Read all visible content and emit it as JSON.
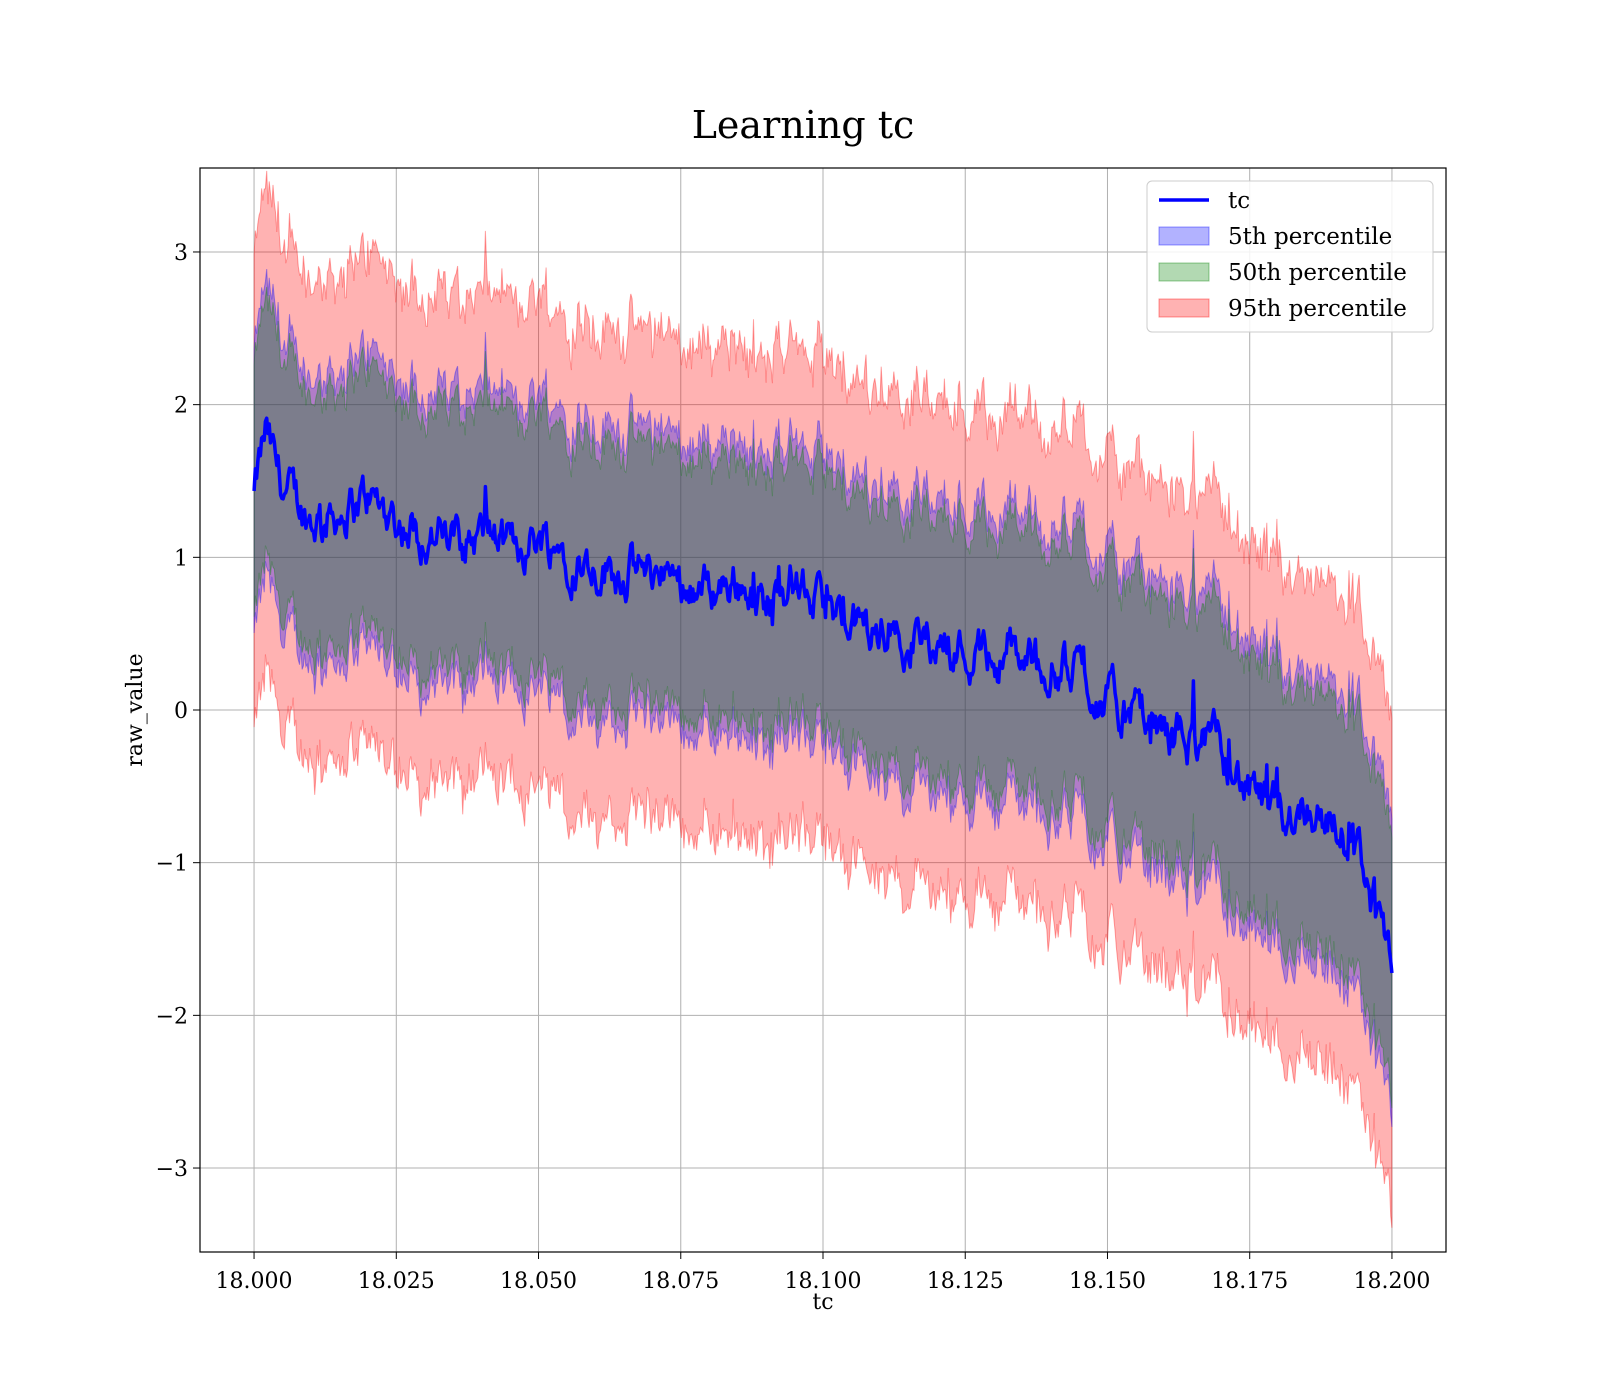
{
  "chart_data": {
    "type": "line",
    "title": "Learning tc",
    "xlabel": "tc",
    "ylabel": "raw_value",
    "xlim": [
      17.9905,
      18.2095
    ],
    "ylim": [
      -3.55,
      3.55
    ],
    "x_ticks": [
      18.0,
      18.025,
      18.05,
      18.075,
      18.1,
      18.125,
      18.15,
      18.175,
      18.2
    ],
    "x_tick_labels": [
      "18.000",
      "18.025",
      "18.050",
      "18.075",
      "18.100",
      "18.125",
      "18.150",
      "18.175",
      "18.200"
    ],
    "y_ticks": [
      -3,
      -2,
      -1,
      0,
      1,
      2,
      3
    ],
    "y_tick_labels": [
      "−3",
      "−2",
      "−1",
      "0",
      "1",
      "2",
      "3"
    ],
    "grid": true,
    "legend_position": "top-right",
    "colors": {
      "line": "#0000ff",
      "band_5th": "#0000ff",
      "band_50th": "#008000",
      "band_95th": "#ff0000"
    },
    "series": [
      {
        "name": "tc",
        "kind": "line",
        "x": [
          18.0,
          18.002,
          18.005,
          18.01,
          18.015,
          18.02,
          18.025,
          18.03,
          18.035,
          18.04,
          18.045,
          18.05,
          18.055,
          18.06,
          18.065,
          18.07,
          18.075,
          18.08,
          18.085,
          18.09,
          18.095,
          18.1,
          18.105,
          18.11,
          18.115,
          18.12,
          18.125,
          18.13,
          18.135,
          18.14,
          18.145,
          18.15,
          18.155,
          18.16,
          18.165,
          18.17,
          18.175,
          18.18,
          18.185,
          18.19,
          18.195,
          18.2
        ],
        "y": [
          1.4,
          1.8,
          1.45,
          1.25,
          1.3,
          1.4,
          1.25,
          1.15,
          1.1,
          1.15,
          1.05,
          1.15,
          1.05,
          0.95,
          0.92,
          0.9,
          0.85,
          0.8,
          0.85,
          0.7,
          0.85,
          0.65,
          0.55,
          0.5,
          0.5,
          0.45,
          0.4,
          0.35,
          0.35,
          0.3,
          0.25,
          0.05,
          -0.05,
          -0.15,
          -0.2,
          -0.25,
          -0.55,
          -0.7,
          -0.6,
          -0.75,
          -1.0,
          -1.8
        ]
      },
      {
        "name": "5th percentile",
        "kind": "band",
        "half_width": 0.9
      },
      {
        "name": "50th percentile",
        "kind": "band",
        "half_width": 0.8
      },
      {
        "name": "95th percentile",
        "kind": "band",
        "half_width": 1.5
      }
    ]
  }
}
